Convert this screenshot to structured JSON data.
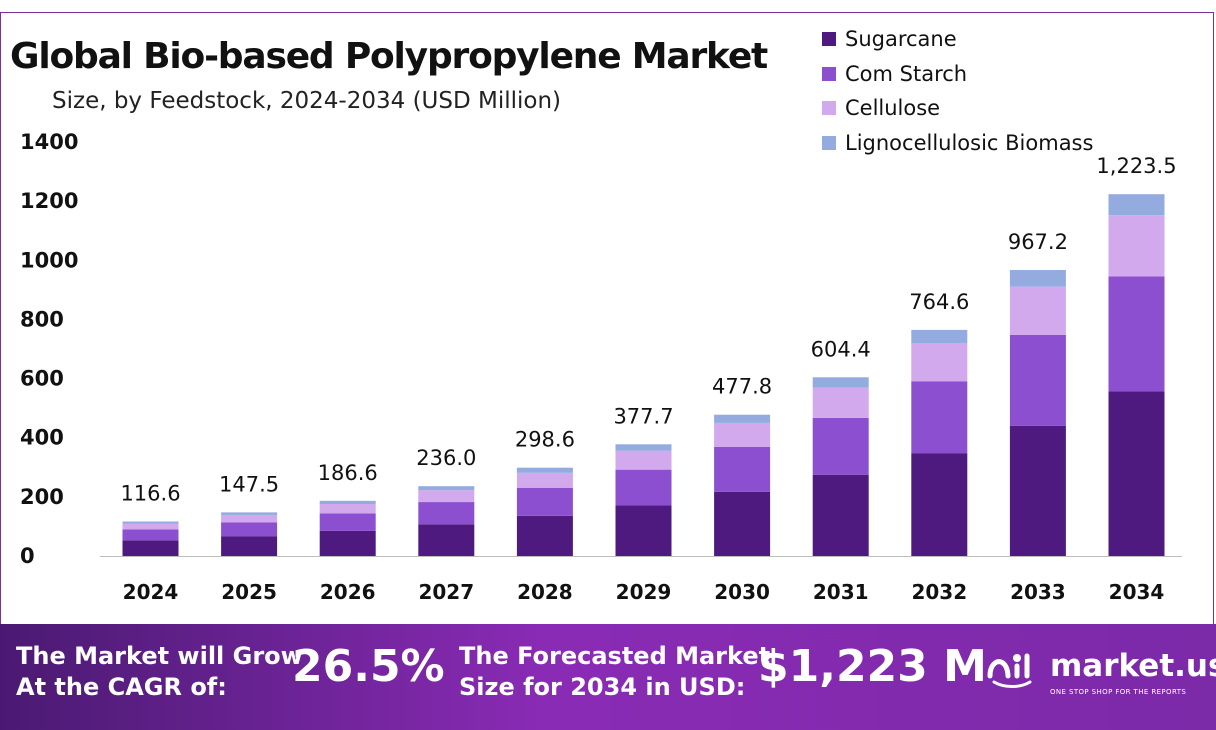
{
  "title": "Global Bio-based Polypropylene Market",
  "subtitle": "Size, by Feedstock, 2024-2034 (USD Million)",
  "chart_data": {
    "type": "bar",
    "stacked": true,
    "categories": [
      "2024",
      "2025",
      "2026",
      "2027",
      "2028",
      "2029",
      "2030",
      "2031",
      "2032",
      "2033",
      "2034"
    ],
    "ylim": [
      0,
      1400
    ],
    "yticks": [
      0,
      200,
      400,
      600,
      800,
      1000,
      1200,
      1400
    ],
    "grid": false,
    "legend_position": "top-right",
    "series": [
      {
        "name": "Sugarcane",
        "color": "#4f1a7f",
        "values": [
          53.0,
          67.0,
          84.9,
          107.3,
          135.8,
          171.8,
          217.3,
          274.9,
          347.8,
          439.9,
          556.5
        ]
      },
      {
        "name": "Corn Starch",
        "color": "#8b4fcf",
        "values": [
          37.1,
          47.0,
          59.4,
          75.1,
          95.0,
          120.2,
          152.0,
          192.3,
          243.2,
          307.6,
          389.2
        ]
      },
      {
        "name": "Cellulose",
        "color": "#d2a9ec",
        "values": [
          19.7,
          24.9,
          31.5,
          39.9,
          50.5,
          63.9,
          80.8,
          102.2,
          129.3,
          163.5,
          206.8
        ]
      },
      {
        "name": "Lignocellulosic Biomass",
        "color": "#93abdf",
        "values": [
          6.8,
          8.6,
          10.8,
          13.7,
          17.3,
          21.8,
          27.7,
          35.0,
          44.3,
          56.2,
          71.0
        ]
      }
    ],
    "totals": [
      "116.6",
      "147.5",
      "186.6",
      "236.0",
      "298.6",
      "377.7",
      "477.8",
      "604.4",
      "764.6",
      "967.2",
      "1,223.5"
    ]
  },
  "legend": [
    {
      "label": "Sugarcane",
      "color": "#4f1a7f"
    },
    {
      "label": "Com Starch",
      "color": "#8b4fcf"
    },
    {
      "label": "Cellulose",
      "color": "#d2a9ec"
    },
    {
      "label": "Lignocellulosic Biomass",
      "color": "#93abdf"
    }
  ],
  "footer": {
    "cagr_line1": "The Market will Grow",
    "cagr_line2": "At the CAGR of:",
    "cagr_value": "26.5%",
    "forecast_line1": "The Forecasted Market",
    "forecast_line2": "Size for 2034 in USD:",
    "forecast_value": "$1,223 M",
    "brand_name": "market.us",
    "brand_tagline": "ONE STOP SHOP FOR THE REPORTS",
    "brand_icon": "market-us-logo-icon"
  }
}
